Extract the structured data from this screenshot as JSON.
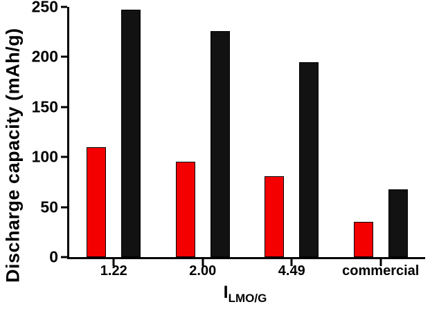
{
  "chart_data": {
    "type": "bar",
    "title": "",
    "ylabel": "Discharge capacity (mAh/g)",
    "xlabel_main": "I",
    "xlabel_sub": "LMO/G",
    "ylim": [
      0,
      250
    ],
    "yticks": [
      0,
      50,
      100,
      150,
      200,
      250
    ],
    "categories": [
      "1.22",
      "2.00",
      "4.49",
      "commercial"
    ],
    "series": [
      {
        "name": "red",
        "color": "#f40000",
        "edge": "#000000",
        "values": [
          110,
          95,
          81,
          35
        ]
      },
      {
        "name": "black",
        "color": "#121212",
        "edge": "#000000",
        "values": [
          247,
          226,
          195,
          68
        ]
      }
    ],
    "grid": false,
    "legend": false,
    "axis_color": "#000000",
    "background": "#ffffff"
  }
}
